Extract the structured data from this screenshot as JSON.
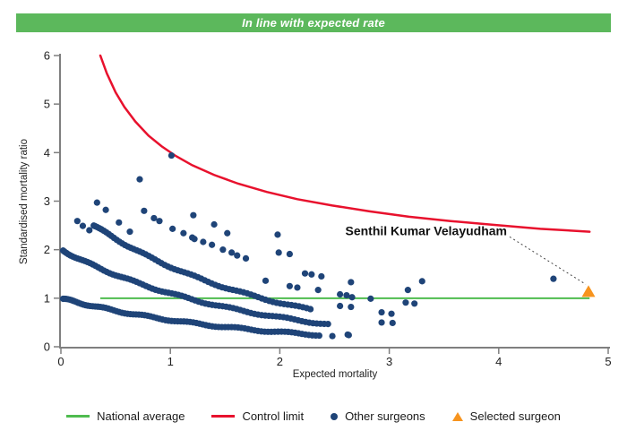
{
  "banner": {
    "text": "In line with expected rate",
    "bg_color": "#5cb85c",
    "text_color": "#ffffff"
  },
  "chart_data": {
    "type": "scatter",
    "title": "",
    "xlabel": "Expected mortality",
    "ylabel": "Standardised mortality ratio",
    "xlim": [
      0,
      5
    ],
    "ylim": [
      0,
      6
    ],
    "x_ticks": [
      0,
      1,
      2,
      3,
      4,
      5
    ],
    "y_ticks": [
      0,
      1,
      2,
      3,
      4,
      5,
      6
    ],
    "grid": "off",
    "national_average": {
      "label": "National average",
      "y": 1,
      "x_start": 0.36,
      "x_end": 4.83,
      "color": "#4fbc4f"
    },
    "control_limit": {
      "label": "Control limit",
      "color": "#e8112d",
      "model": "smr = 1 + 3/sqrt(expected)",
      "points": [
        [
          0.36,
          6.0
        ],
        [
          0.42,
          5.63
        ],
        [
          0.5,
          5.24
        ],
        [
          0.58,
          4.94
        ],
        [
          0.68,
          4.64
        ],
        [
          0.8,
          4.35
        ],
        [
          0.92,
          4.13
        ],
        [
          1.05,
          3.93
        ],
        [
          1.2,
          3.74
        ],
        [
          1.4,
          3.54
        ],
        [
          1.62,
          3.36
        ],
        [
          1.88,
          3.19
        ],
        [
          2.16,
          3.04
        ],
        [
          2.48,
          2.91
        ],
        [
          2.82,
          2.79
        ],
        [
          3.18,
          2.68
        ],
        [
          3.56,
          2.59
        ],
        [
          3.96,
          2.51
        ],
        [
          4.38,
          2.43
        ],
        [
          4.83,
          2.37
        ]
      ]
    },
    "other_surgeons": {
      "label": "Other surgeons",
      "color": "#1f4478",
      "model": "dense arcs of surgeons with equal deaths: smr = deaths * exp(-expected/decay_tau)",
      "decay_tau": 1.67,
      "bands": [
        {
          "deaths": 1,
          "x_start": 0.02,
          "x_end": 2.36,
          "n": 88
        },
        {
          "deaths": 2,
          "x_start": 0.02,
          "x_end": 2.44,
          "n": 84
        },
        {
          "deaths": 3,
          "x_start": 0.3,
          "x_end": 2.28,
          "n": 68
        }
      ],
      "extra_points": [
        [
          1.01,
          3.94
        ],
        [
          0.72,
          3.45
        ],
        [
          0.15,
          2.59
        ],
        [
          0.2,
          2.49
        ],
        [
          0.26,
          2.4
        ],
        [
          0.33,
          2.97
        ],
        [
          0.41,
          2.82
        ],
        [
          0.53,
          2.56
        ],
        [
          0.63,
          2.37
        ],
        [
          0.76,
          2.8
        ],
        [
          0.85,
          2.65
        ],
        [
          0.9,
          2.59
        ],
        [
          1.02,
          2.43
        ],
        [
          1.12,
          2.34
        ],
        [
          1.2,
          2.25
        ],
        [
          1.21,
          2.71
        ],
        [
          1.4,
          2.52
        ],
        [
          1.52,
          2.34
        ],
        [
          1.22,
          2.22
        ],
        [
          1.3,
          2.16
        ],
        [
          1.38,
          2.1
        ],
        [
          1.48,
          2.0
        ],
        [
          1.56,
          1.94
        ],
        [
          1.61,
          1.88
        ],
        [
          1.69,
          1.82
        ],
        [
          1.98,
          2.31
        ],
        [
          1.99,
          1.94
        ],
        [
          2.09,
          1.91
        ],
        [
          2.23,
          1.51
        ],
        [
          2.29,
          1.49
        ],
        [
          2.38,
          1.45
        ],
        [
          1.87,
          1.36
        ],
        [
          2.09,
          1.25
        ],
        [
          2.16,
          1.22
        ],
        [
          2.35,
          1.17
        ],
        [
          2.65,
          1.33
        ],
        [
          2.55,
          1.08
        ],
        [
          2.61,
          1.06
        ],
        [
          2.66,
          1.02
        ],
        [
          2.83,
          0.99
        ],
        [
          3.17,
          1.17
        ],
        [
          3.3,
          1.35
        ],
        [
          3.15,
          0.91
        ],
        [
          3.23,
          0.89
        ],
        [
          2.55,
          0.84
        ],
        [
          2.65,
          0.82
        ],
        [
          2.93,
          0.71
        ],
        [
          3.02,
          0.68
        ],
        [
          2.93,
          0.5
        ],
        [
          3.03,
          0.49
        ],
        [
          2.62,
          0.25
        ],
        [
          2.48,
          0.22
        ],
        [
          2.63,
          0.24
        ],
        [
          4.5,
          1.4
        ]
      ]
    },
    "selected_surgeon": {
      "label": "Selected surgeon",
      "annotation": "Senthil Kumar Velayudham",
      "x": 4.82,
      "y": 1.12,
      "color": "#f7941e"
    }
  },
  "legend": {
    "items": [
      {
        "label": "National average",
        "swatch": "line",
        "color": "#4fbc4f"
      },
      {
        "label": "Control limit",
        "swatch": "line",
        "color": "#e8112d"
      },
      {
        "label": "Other surgeons",
        "swatch": "dot",
        "color": "#1f4478"
      },
      {
        "label": "Selected surgeon",
        "swatch": "triangle",
        "color": "#f7941e"
      }
    ]
  }
}
